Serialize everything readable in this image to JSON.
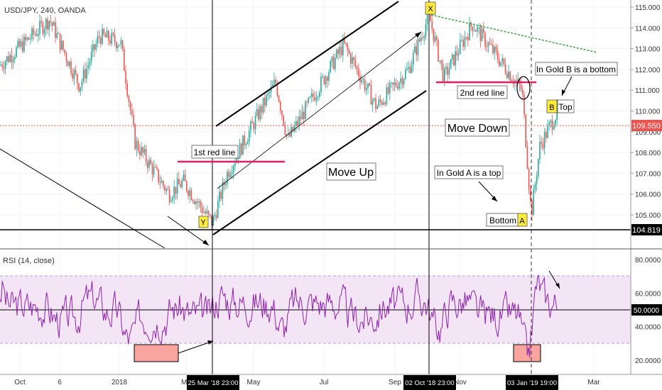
{
  "header": {
    "symbol_label": "USD/JPY, 240, OANDA"
  },
  "rsi_panel": {
    "label": "RSI (14, close)"
  },
  "colors": {
    "candle_up": "#26a69a",
    "candle_down": "#ef5350",
    "rsi_line": "#8e24aa",
    "rsi_band_fill": "#f3e5f5",
    "red_line": "#e91e63",
    "green_trend": "#4caf50",
    "current_price_bg": "#ef5350",
    "marker_yellow": "#ffeb3b",
    "rsi_box_fill": "#f8a5a0"
  },
  "chart_data": [
    {
      "type": "candlestick",
      "title": "USD/JPY, 240, OANDA",
      "ylim": [
        103.8,
        115.3
      ],
      "y_ticks": [
        "115.000",
        "114.000",
        "113.000",
        "112.000",
        "111.000",
        "110.000",
        "109.000",
        "108.000",
        "107.000",
        "106.000",
        "105.000"
      ],
      "x_ticks": [
        "Oct",
        "6",
        "2018",
        "Ma",
        "May",
        "Jul",
        "Sep",
        "Nov",
        "Mar"
      ],
      "x_highlight_labels": [
        "25 Mar '18   23:00",
        "02 Oct '18   23:00",
        "03 Jan '19   19:00"
      ],
      "current_price": "109.550",
      "horizontal_level": "104.819",
      "path_anchors": [
        {
          "x": "Oct '17",
          "y": 112.2
        },
        {
          "x": "early Nov '17",
          "y": 114.4
        },
        {
          "x": "mid Nov '17",
          "y": 111.2
        },
        {
          "x": "early Dec '17",
          "y": 113.6
        },
        {
          "x": "Jan '18",
          "y": 113.3
        },
        {
          "x": "late Jan '18",
          "y": 108.5
        },
        {
          "x": "Feb '18",
          "y": 106.0
        },
        {
          "x": "Mar '18",
          "y": 106.6
        },
        {
          "x": "25 Mar '18",
          "y": 104.6
        },
        {
          "x": "Apr '18",
          "y": 107.0
        },
        {
          "x": "May '18",
          "y": 111.4
        },
        {
          "x": "late May '18",
          "y": 108.6
        },
        {
          "x": "Jul '18",
          "y": 113.2
        },
        {
          "x": "Aug '18",
          "y": 110.2
        },
        {
          "x": "Sep '18",
          "y": 112.0
        },
        {
          "x": "02 Oct '18",
          "y": 114.6
        },
        {
          "x": "late Oct '18",
          "y": 111.6
        },
        {
          "x": "Nov '18",
          "y": 114.2
        },
        {
          "x": "Dec '18",
          "y": 111.0
        },
        {
          "x": "03 Jan '19",
          "y": 105.0
        },
        {
          "x": "Jan '19",
          "y": 108.3
        },
        {
          "x": "Feb '19",
          "y": 110.0
        }
      ],
      "annotations": [
        {
          "text": "1st red line"
        },
        {
          "text": "Move Up"
        },
        {
          "text": "2nd red line"
        },
        {
          "text": "Move Down"
        },
        {
          "text": "In Gold B is a bottom"
        },
        {
          "text": "In Gold A is a top"
        },
        {
          "text": "Bottom"
        },
        {
          "text": "Top"
        }
      ],
      "point_labels": [
        "X",
        "Y",
        "A",
        "B"
      ]
    },
    {
      "type": "line",
      "title": "RSI (14, close)",
      "ylim": [
        15,
        85
      ],
      "y_ticks": [
        "80.0000",
        "60.0000",
        "50.0000",
        "40.0000",
        "20.0000"
      ],
      "bands": [
        30,
        70
      ],
      "midline": 50
    }
  ]
}
